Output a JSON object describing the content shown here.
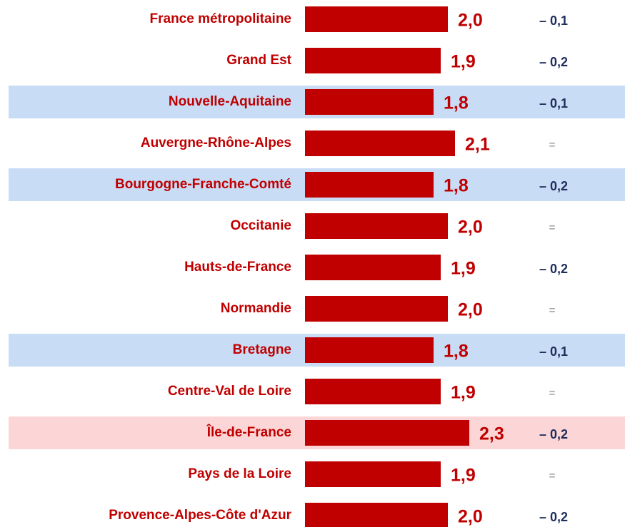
{
  "chart_data": {
    "type": "bar",
    "categories": [
      "France métropolitaine",
      "Grand Est",
      "Nouvelle-Aquitaine",
      "Auvergne-Rhône-Alpes",
      "Bourgogne-Franche-Comté",
      "Occitanie",
      "Hauts-de-France",
      "Normandie",
      "Bretagne",
      "Centre-Val de Loire",
      "Île-de-France",
      "Pays de la Loire",
      "Provence-Alpes-Côte d'Azur"
    ],
    "values": [
      2.0,
      1.9,
      1.8,
      2.1,
      1.8,
      2.0,
      1.9,
      2.0,
      1.8,
      1.9,
      2.3,
      1.9,
      2.0
    ],
    "value_labels": [
      "2,0",
      "1,9",
      "1,8",
      "2,1",
      "1,8",
      "2,0",
      "1,9",
      "2,0",
      "1,8",
      "1,9",
      "2,3",
      "1,9",
      "2,0"
    ],
    "changes": [
      -0.1,
      -0.2,
      -0.1,
      0,
      -0.2,
      0,
      -0.2,
      0,
      -0.1,
      0,
      -0.2,
      0,
      -0.2
    ],
    "change_labels": [
      "– 0,1",
      "– 0,2",
      "– 0,1",
      "=",
      "– 0,2",
      "=",
      "– 0,2",
      "=",
      "– 0,1",
      "=",
      "– 0,2",
      "=",
      "– 0,2"
    ],
    "color": "#c00000",
    "row_colors": [
      null,
      null,
      "#c9dcf6",
      null,
      "#c9dcf6",
      null,
      null,
      null,
      "#c9dcf6",
      null,
      "#fcd6d6",
      null,
      null
    ]
  }
}
